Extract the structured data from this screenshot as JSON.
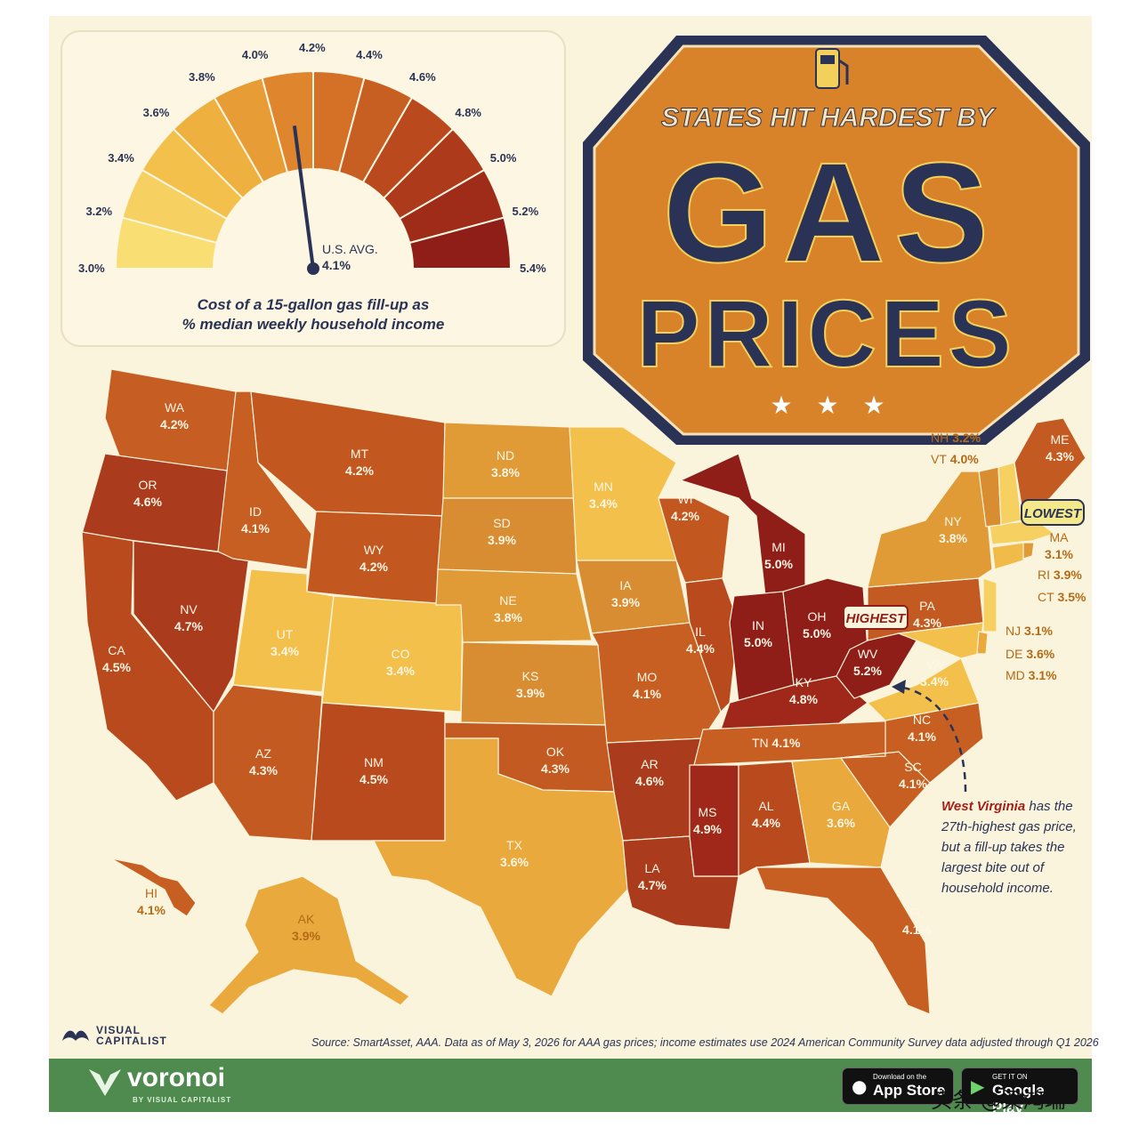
{
  "colors": {
    "background": "#fbf4dc",
    "navy": "#2a3355",
    "badge": "#d8822a",
    "highest": "#a51f1a",
    "footer": "#4f8a4e"
  },
  "title": {
    "line1": "STATES HIT HARDEST BY",
    "line2": "GAS",
    "line3": "PRICES",
    "icon": "gas-pump-icon"
  },
  "gauge": {
    "ticks": [
      "3.0%",
      "3.2%",
      "3.4%",
      "3.6%",
      "3.8%",
      "4.0%",
      "4.2%",
      "4.4%",
      "4.6%",
      "4.8%",
      "5.0%",
      "5.2%",
      "5.4%"
    ],
    "min": 3.0,
    "max": 5.4,
    "avg_label": "U.S. AVG.",
    "avg_value": "4.1%",
    "avg_numeric": 4.1,
    "caption_line1": "Cost of a 15-gallon gas fill-up as",
    "caption_line2": "% median weekly household income"
  },
  "states": [
    {
      "abbr": "WA",
      "value": "4.2%",
      "label_color": "light"
    },
    {
      "abbr": "OR",
      "value": "4.6%",
      "label_color": "light"
    },
    {
      "abbr": "CA",
      "value": "4.5%",
      "label_color": "light"
    },
    {
      "abbr": "ID",
      "value": "4.1%",
      "label_color": "light"
    },
    {
      "abbr": "NV",
      "value": "4.7%",
      "label_color": "light"
    },
    {
      "abbr": "MT",
      "value": "4.2%",
      "label_color": "light"
    },
    {
      "abbr": "WY",
      "value": "4.2%",
      "label_color": "light"
    },
    {
      "abbr": "UT",
      "value": "3.4%",
      "label_color": "light"
    },
    {
      "abbr": "CO",
      "value": "3.4%",
      "label_color": "light"
    },
    {
      "abbr": "AZ",
      "value": "4.3%",
      "label_color": "light"
    },
    {
      "abbr": "NM",
      "value": "4.5%",
      "label_color": "light"
    },
    {
      "abbr": "ND",
      "value": "3.8%",
      "label_color": "light"
    },
    {
      "abbr": "SD",
      "value": "3.9%",
      "label_color": "light"
    },
    {
      "abbr": "NE",
      "value": "3.8%",
      "label_color": "light"
    },
    {
      "abbr": "KS",
      "value": "3.9%",
      "label_color": "light"
    },
    {
      "abbr": "OK",
      "value": "4.3%",
      "label_color": "light"
    },
    {
      "abbr": "TX",
      "value": "3.6%",
      "label_color": "light"
    },
    {
      "abbr": "MN",
      "value": "3.4%",
      "label_color": "light"
    },
    {
      "abbr": "IA",
      "value": "3.9%",
      "label_color": "light"
    },
    {
      "abbr": "MO",
      "value": "4.1%",
      "label_color": "light"
    },
    {
      "abbr": "AR",
      "value": "4.6%",
      "label_color": "light"
    },
    {
      "abbr": "LA",
      "value": "4.7%",
      "label_color": "light"
    },
    {
      "abbr": "WI",
      "value": "4.2%",
      "label_color": "light"
    },
    {
      "abbr": "IL",
      "value": "4.4%",
      "label_color": "light"
    },
    {
      "abbr": "MI",
      "value": "5.0%",
      "label_color": "light"
    },
    {
      "abbr": "IN",
      "value": "5.0%",
      "label_color": "light"
    },
    {
      "abbr": "OH",
      "value": "5.0%",
      "label_color": "light"
    },
    {
      "abbr": "KY",
      "value": "4.8%",
      "label_color": "light"
    },
    {
      "abbr": "TN",
      "value": "4.1%",
      "label_color": "light"
    },
    {
      "abbr": "MS",
      "value": "4.9%",
      "label_color": "light"
    },
    {
      "abbr": "AL",
      "value": "4.4%",
      "label_color": "light"
    },
    {
      "abbr": "GA",
      "value": "3.6%",
      "label_color": "light"
    },
    {
      "abbr": "FL",
      "value": "4.1%",
      "label_color": "light"
    },
    {
      "abbr": "SC",
      "value": "4.1%",
      "label_color": "light"
    },
    {
      "abbr": "NC",
      "value": "4.1%",
      "label_color": "light"
    },
    {
      "abbr": "VA",
      "value": "3.4%",
      "label_color": "light"
    },
    {
      "abbr": "WV",
      "value": "5.2%",
      "label_color": "light"
    },
    {
      "abbr": "PA",
      "value": "4.3%",
      "label_color": "light"
    },
    {
      "abbr": "NY",
      "value": "3.8%",
      "label_color": "light"
    },
    {
      "abbr": "ME",
      "value": "4.3%",
      "label_color": "light"
    },
    {
      "abbr": "NH",
      "value": "3.2%",
      "label_color": "dark"
    },
    {
      "abbr": "VT",
      "value": "4.0%",
      "label_color": "dark"
    },
    {
      "abbr": "MA",
      "value": "3.1%",
      "label_color": "dark"
    },
    {
      "abbr": "RI",
      "value": "3.9%",
      "label_color": "dark"
    },
    {
      "abbr": "CT",
      "value": "3.5%",
      "label_color": "dark"
    },
    {
      "abbr": "NJ",
      "value": "3.1%",
      "label_color": "dark"
    },
    {
      "abbr": "DE",
      "value": "3.6%",
      "label_color": "dark"
    },
    {
      "abbr": "MD",
      "value": "3.1%",
      "label_color": "dark"
    },
    {
      "abbr": "AK",
      "value": "3.9%",
      "label_color": "dark"
    },
    {
      "abbr": "HI",
      "value": "4.1%",
      "label_color": "dark"
    }
  ],
  "callouts": {
    "highest": "HIGHEST",
    "lowest": "LOWEST"
  },
  "note": {
    "bold": "West Virginia",
    "rest": " has the 27th-highest gas price, but a fill-up takes the largest bite out of household income."
  },
  "source": "Source: SmartAsset, AAA. Data as of May 3, 2026 for AAA gas prices; income estimates use 2024 American Community Survey data adjusted through Q1 2026",
  "brand": {
    "vc_line1": "VISUAL",
    "vc_line2": "CAPITALIST",
    "voronoi": "voronoi",
    "voronoi_sub": "BY VISUAL CAPITALIST"
  },
  "stores": [
    {
      "small": "Download on the",
      "big": "App Store",
      "icon": "apple-icon"
    },
    {
      "small": "GET IT ON",
      "big": "Google Play",
      "icon": "play-icon"
    }
  ],
  "watermark": "头条 @梁鸿瑞"
}
